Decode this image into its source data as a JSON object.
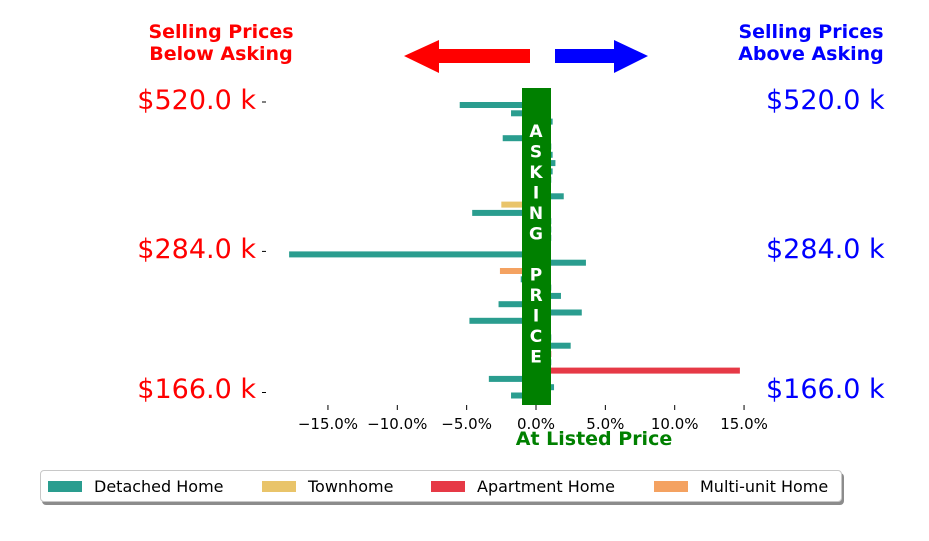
{
  "header": {
    "left_line1": "Selling Prices",
    "left_line2": "Below Asking",
    "right_line1": "Selling Prices",
    "right_line2": "Above Asking",
    "left_color": "#ff0000",
    "right_color": "#0000ff"
  },
  "center_label": {
    "text": "ASKING PRICE",
    "letters": [
      "A",
      "S",
      "K",
      "I",
      "N",
      "G",
      "",
      "P",
      "R",
      "I",
      "C",
      "E"
    ],
    "color": "#008000"
  },
  "bottom_label": "At Listed Price",
  "price_labels": {
    "left": [
      "$520.0 k",
      "$284.0 k",
      "$166.0 k"
    ],
    "right": [
      "$520.0 k",
      "$284.0 k",
      "$166.0 k"
    ]
  },
  "legend": [
    {
      "label": "Detached Home",
      "color": "#2a9d8f"
    },
    {
      "label": "Townhome",
      "color": "#e9c46a"
    },
    {
      "label": "Apartment Home",
      "color": "#e63946"
    },
    {
      "label": "Multi-unit Home",
      "color": "#f4a261"
    }
  ],
  "chart_data": {
    "type": "bar",
    "orientation": "horizontal",
    "x_tick_labels": [
      "−15.0%",
      "−10.0%",
      "−5.0%",
      "0.0%",
      "5.0%",
      "10.0%",
      "15.0%"
    ],
    "x_ticks": [
      -15,
      -10,
      -5,
      0,
      5,
      10,
      15
    ],
    "xlim": [
      -19,
      20
    ],
    "y_tick_labels": [
      "$520.0 k",
      "$284.0 k",
      "$166.0 k"
    ],
    "y_ticks_row": [
      0,
      18,
      35
    ],
    "bars": [
      {
        "row": 0,
        "value": -5.5,
        "series": "Detached Home"
      },
      {
        "row": 1,
        "value": -1.8,
        "series": "Detached Home"
      },
      {
        "row": 2,
        "value": 1.2,
        "series": "Detached Home"
      },
      {
        "row": 4,
        "value": -2.4,
        "series": "Detached Home"
      },
      {
        "row": 5,
        "value": 1.1,
        "series": "Detached Home"
      },
      {
        "row": 6,
        "value": 1.2,
        "series": "Detached Home"
      },
      {
        "row": 7,
        "value": 1.4,
        "series": "Detached Home"
      },
      {
        "row": 8,
        "value": 1.2,
        "series": "Detached Home"
      },
      {
        "row": 9,
        "value": 1.1,
        "series": "Detached Home"
      },
      {
        "row": 11,
        "value": 2.0,
        "series": "Detached Home"
      },
      {
        "row": 12,
        "value": -2.5,
        "series": "Townhome"
      },
      {
        "row": 13,
        "value": -4.6,
        "series": "Detached Home"
      },
      {
        "row": 14,
        "value": 1.1,
        "series": "Detached Home"
      },
      {
        "row": 15,
        "value": 1.1,
        "series": "Detached Home"
      },
      {
        "row": 16,
        "value": 1.1,
        "series": "Detached Home"
      },
      {
        "row": 18,
        "value": -17.8,
        "series": "Detached Home"
      },
      {
        "row": 19,
        "value": 3.6,
        "series": "Detached Home"
      },
      {
        "row": 20,
        "value": -2.6,
        "series": "Multi-unit Home"
      },
      {
        "row": 21,
        "value": -1.1,
        "series": "Detached Home"
      },
      {
        "row": 22,
        "value": 1.1,
        "series": "Detached Home"
      },
      {
        "row": 23,
        "value": 1.8,
        "series": "Detached Home"
      },
      {
        "row": 24,
        "value": -2.7,
        "series": "Detached Home"
      },
      {
        "row": 25,
        "value": 3.3,
        "series": "Detached Home"
      },
      {
        "row": 26,
        "value": -4.8,
        "series": "Detached Home"
      },
      {
        "row": 28,
        "value": 1.1,
        "series": "Detached Home"
      },
      {
        "row": 29,
        "value": 2.5,
        "series": "Detached Home"
      },
      {
        "row": 30,
        "value": 1.1,
        "series": "Apartment Home"
      },
      {
        "row": 31,
        "value": 1.1,
        "series": "Detached Home"
      },
      {
        "row": 32,
        "value": 14.7,
        "series": "Apartment Home"
      },
      {
        "row": 33,
        "value": -3.4,
        "series": "Detached Home"
      },
      {
        "row": 34,
        "value": 1.3,
        "series": "Detached Home"
      },
      {
        "row": 35,
        "value": -1.8,
        "series": "Detached Home"
      }
    ]
  }
}
